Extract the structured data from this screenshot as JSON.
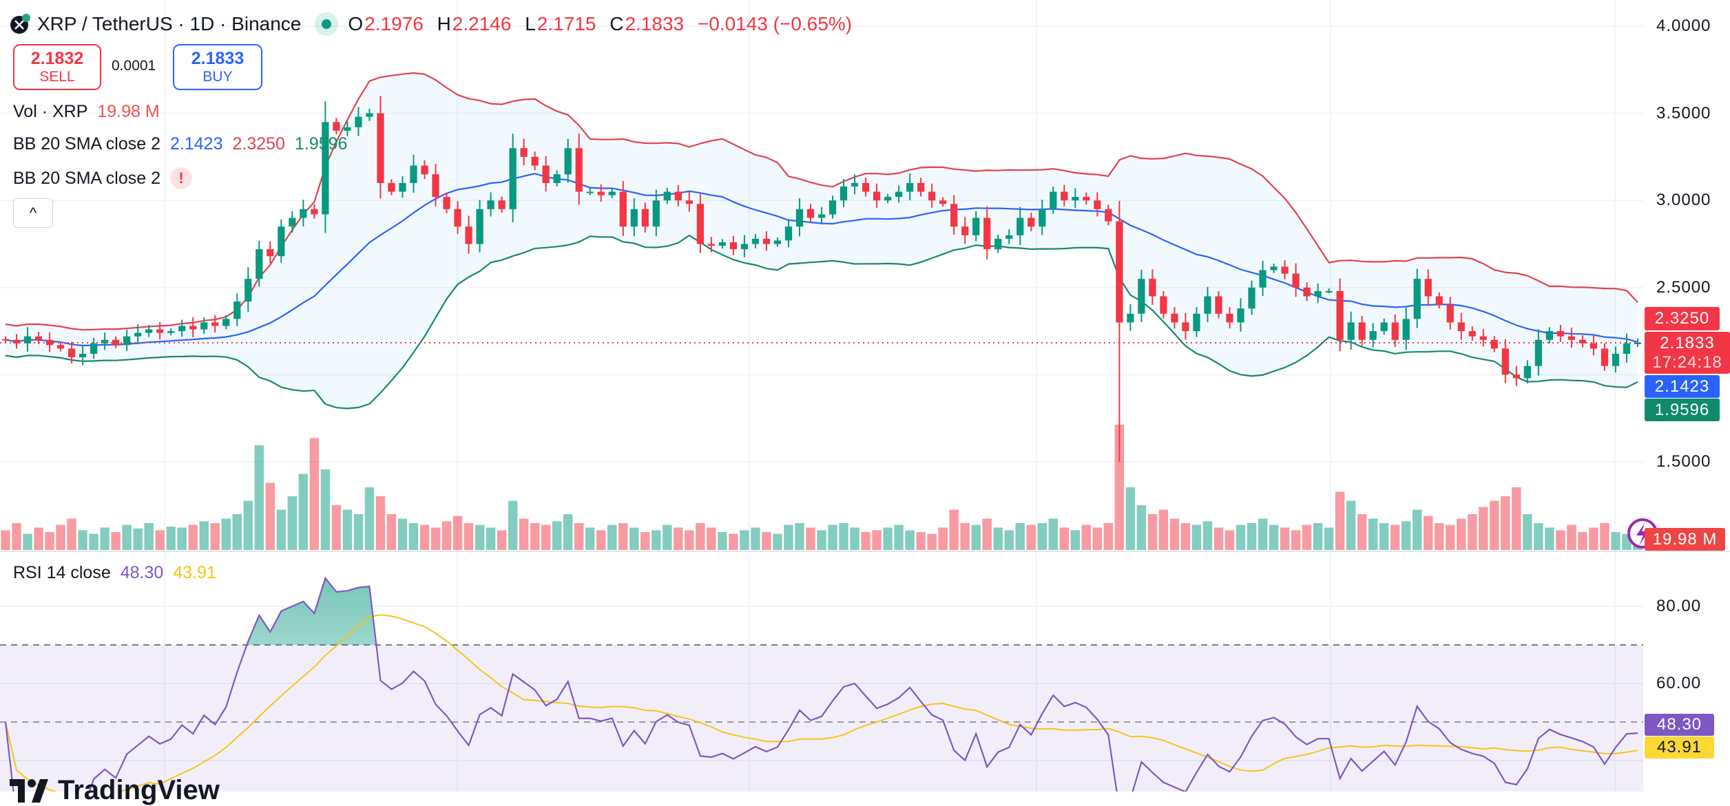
{
  "header": {
    "symbol_title": "XRP / TetherUS · 1D · Binance",
    "o_label": "O",
    "o": "2.1976",
    "h_label": "H",
    "h": "2.2146",
    "l_label": "L",
    "l": "2.1715",
    "c_label": "C",
    "c": "2.1833",
    "change": "−0.0143 (−0.65%)"
  },
  "trade": {
    "sell_price": "2.1832",
    "sell_label": "SELL",
    "spread": "0.0001",
    "buy_price": "2.1833",
    "buy_label": "BUY"
  },
  "legends": {
    "vol_label": "Vol · XRP",
    "vol_value": "19.98 M",
    "bb1_label": "BB 20 SMA close 2",
    "bb1_basis": "2.1423",
    "bb1_upper": "2.3250",
    "bb1_lower": "1.9596",
    "bb2_label": "BB 20 SMA close 2",
    "bb2_warning": "!",
    "collapse_glyph": "^",
    "rsi_label": "RSI 14 close",
    "rsi_value": "48.30",
    "rsi_ma": "43.91"
  },
  "price_axis": {
    "ticks": [
      "4.0000",
      "3.5000",
      "3.0000",
      "2.5000",
      "1.5000"
    ],
    "upper_tag": "2.3250",
    "last_price": "2.1833",
    "countdown": "17:24:18",
    "basis_tag": "2.1423",
    "lower_tag": "1.9596",
    "volume_tag": "19.98 M"
  },
  "rsi_axis": {
    "ticks": [
      "80.00",
      "60.00"
    ],
    "rsi_tag": "48.30",
    "ma_tag": "43.91"
  },
  "logo": "TradingView",
  "colors": {
    "up": "#089981",
    "down": "#f23645",
    "bb_upper": "#e0434f",
    "bb_basis": "#2962ff",
    "bb_lower": "#16896d",
    "rsi": "#7e57c2",
    "rsi_ma": "#f5c518"
  },
  "chart_data": {
    "type": "candlestick",
    "symbol": "XRP / TetherUS",
    "interval": "1D",
    "ylim": [
      1.3,
      4.1
    ],
    "closes": [
      2.2,
      2.18,
      2.22,
      2.2,
      2.17,
      2.15,
      2.1,
      2.12,
      2.18,
      2.2,
      2.17,
      2.22,
      2.24,
      2.26,
      2.24,
      2.25,
      2.28,
      2.26,
      2.3,
      2.28,
      2.32,
      2.42,
      2.55,
      2.72,
      2.68,
      2.85,
      2.9,
      2.95,
      2.92,
      3.45,
      3.4,
      3.42,
      3.48,
      3.5,
      3.1,
      3.05,
      3.1,
      3.2,
      3.15,
      3.02,
      2.95,
      2.85,
      2.75,
      2.95,
      3.0,
      2.95,
      3.3,
      3.25,
      3.2,
      3.1,
      3.15,
      3.3,
      3.05,
      3.05,
      3.03,
      3.05,
      2.85,
      2.95,
      2.85,
      3.0,
      3.05,
      3.0,
      2.98,
      2.75,
      2.74,
      2.76,
      2.72,
      2.75,
      2.78,
      2.75,
      2.77,
      2.85,
      2.95,
      2.9,
      2.92,
      3.0,
      3.08,
      3.1,
      3.05,
      3.0,
      3.02,
      3.05,
      3.1,
      3.05,
      3.0,
      2.98,
      2.85,
      2.8,
      2.9,
      2.72,
      2.78,
      2.8,
      2.9,
      2.85,
      2.95,
      3.05,
      3.0,
      3.02,
      3.0,
      2.95,
      2.88,
      2.3,
      2.35,
      2.55,
      2.45,
      2.35,
      2.3,
      2.25,
      2.35,
      2.45,
      2.35,
      2.3,
      2.38,
      2.5,
      2.6,
      2.62,
      2.58,
      2.5,
      2.45,
      2.48,
      2.48,
      2.2,
      2.3,
      2.2,
      2.25,
      2.3,
      2.2,
      2.32,
      2.55,
      2.45,
      2.4,
      2.3,
      2.25,
      2.22,
      2.2,
      2.15,
      2.0,
      1.98,
      2.05,
      2.2,
      2.25,
      2.22,
      2.2,
      2.18,
      2.15,
      2.05,
      2.12,
      2.18,
      2.1833
    ],
    "volumes_m": [
      22,
      30,
      18,
      25,
      20,
      28,
      35,
      22,
      18,
      25,
      20,
      28,
      24,
      30,
      22,
      26,
      25,
      28,
      32,
      30,
      35,
      40,
      55,
      117,
      75,
      45,
      60,
      85,
      125,
      90,
      50,
      45,
      40,
      70,
      60,
      40,
      35,
      30,
      28,
      25,
      32,
      38,
      30,
      28,
      25,
      22,
      55,
      35,
      30,
      28,
      32,
      40,
      30,
      25,
      22,
      28,
      30,
      25,
      20,
      22,
      28,
      25,
      22,
      30,
      25,
      20,
      18,
      22,
      25,
      20,
      18,
      28,
      30,
      25,
      22,
      28,
      30,
      25,
      20,
      22,
      25,
      28,
      22,
      20,
      18,
      25,
      45,
      30,
      28,
      35,
      25,
      22,
      30,
      28,
      30,
      35,
      25,
      22,
      28,
      25,
      30,
      140,
      70,
      50,
      40,
      45,
      35,
      30,
      28,
      32,
      25,
      22,
      28,
      30,
      35,
      28,
      25,
      22,
      28,
      30,
      25,
      65,
      55,
      40,
      35,
      30,
      28,
      32,
      45,
      38,
      30,
      28,
      35,
      40,
      48,
      55,
      60,
      70,
      40,
      30,
      25,
      22,
      28,
      20,
      25,
      30,
      20,
      18,
      19.98
    ],
    "notable_lows": [
      {
        "index": 101,
        "low": 1.5
      }
    ],
    "bollinger": {
      "length": 20,
      "mult": 2,
      "basis": 2.1423,
      "upper": 2.325,
      "lower": 1.9596
    },
    "rsi": {
      "length": 14,
      "value": 48.3,
      "ma": 43.91,
      "upper_band": 70,
      "middle": 50,
      "lower_band": 30,
      "ylim": [
        29,
        92
      ]
    },
    "grid": true
  }
}
